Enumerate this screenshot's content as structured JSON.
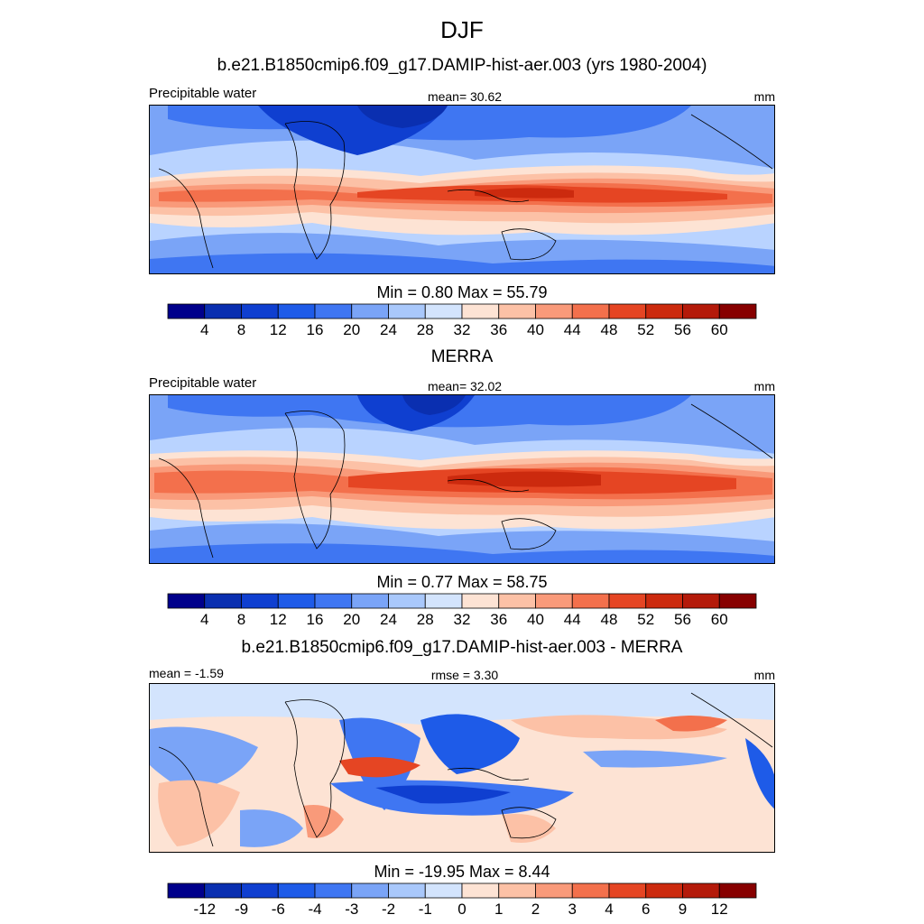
{
  "figure": {
    "season": "DJF"
  },
  "panels": [
    {
      "id": "model",
      "title": "b.e21.B1850cmip6.f09_g17.DAMIP-hist-aer.003 (yrs 1980-2004)",
      "left_label": "Precipitable water",
      "center_label": "mean=  30.62",
      "units": "mm",
      "minmax": "Min =   0.80 Max =  55.79"
    },
    {
      "id": "obs",
      "title": "MERRA",
      "left_label": "Precipitable water",
      "center_label": "mean=  32.02",
      "units": "mm",
      "minmax": "Min =   0.77 Max =  58.75"
    },
    {
      "id": "diff",
      "title": "b.e21.B1850cmip6.f09_g17.DAMIP-hist-aer.003 - MERRA",
      "left_label": "mean =  -1.59",
      "center_label": "rmse =   3.30",
      "units": "mm",
      "minmax": "Min = -19.95 Max =   8.44"
    }
  ],
  "chart_data": [
    {
      "type": "heatmap",
      "title": "b.e21.B1850cmip6.f09_g17.DAMIP-hist-aer.003 (yrs 1980-2004)",
      "variable": "Precipitable water",
      "units": "mm",
      "mean": 30.62,
      "min": 0.8,
      "max": 55.79,
      "colorbar_ticks": [
        4,
        8,
        12,
        16,
        20,
        24,
        28,
        32,
        36,
        40,
        44,
        48,
        52,
        56,
        60
      ],
      "colors": [
        "#00008b",
        "#0a2fb0",
        "#0f3fd0",
        "#1e5be8",
        "#3f76f2",
        "#7aa4f7",
        "#a9c8fb",
        "#d3e4fd",
        "#fde3d4",
        "#fcc1a6",
        "#f99a7a",
        "#f3704c",
        "#e54523",
        "#cc2a0e",
        "#b41a0a",
        "#870000"
      ]
    },
    {
      "type": "heatmap",
      "title": "MERRA",
      "variable": "Precipitable water",
      "units": "mm",
      "mean": 32.02,
      "min": 0.77,
      "max": 58.75,
      "colorbar_ticks": [
        4,
        8,
        12,
        16,
        20,
        24,
        28,
        32,
        36,
        40,
        44,
        48,
        52,
        56,
        60
      ],
      "colors": [
        "#00008b",
        "#0a2fb0",
        "#0f3fd0",
        "#1e5be8",
        "#3f76f2",
        "#7aa4f7",
        "#a9c8fb",
        "#d3e4fd",
        "#fde3d4",
        "#fcc1a6",
        "#f99a7a",
        "#f3704c",
        "#e54523",
        "#cc2a0e",
        "#b41a0a",
        "#870000"
      ]
    },
    {
      "type": "heatmap",
      "title": "b.e21.B1850cmip6.f09_g17.DAMIP-hist-aer.003 - MERRA",
      "units": "mm",
      "mean": -1.59,
      "rmse": 3.3,
      "min": -19.95,
      "max": 8.44,
      "colorbar_ticks": [
        -12,
        -9,
        -6,
        -4,
        -3,
        -2,
        -1,
        0,
        1,
        2,
        3,
        4,
        6,
        9,
        12
      ],
      "colors": [
        "#00008b",
        "#0a2fb0",
        "#0f3fd0",
        "#1e5be8",
        "#3f76f2",
        "#7aa4f7",
        "#a9c8fb",
        "#d3e4fd",
        "#fde3d4",
        "#fcc1a6",
        "#f99a7a",
        "#f3704c",
        "#e54523",
        "#cc2a0e",
        "#b41a0a",
        "#870000"
      ]
    }
  ]
}
